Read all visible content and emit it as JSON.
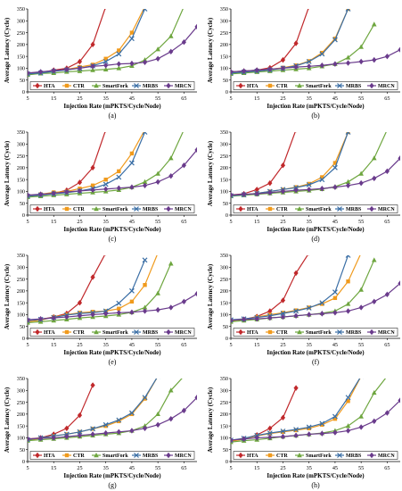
{
  "common": {
    "xlabel": "Injection Rate (mPKTS/Cycle/Node)",
    "ylabel": "Average Latency (Cycle)",
    "xticks": [
      5,
      15,
      25,
      35,
      45,
      55,
      65
    ],
    "yticks": [
      0,
      50,
      100,
      150,
      200,
      250,
      300,
      350
    ],
    "xlim": [
      5,
      70
    ],
    "ylim": [
      0,
      350
    ],
    "grid": false,
    "legend_position": "bottom-inside",
    "series_styles": [
      {
        "name": "HTA",
        "color": "#c0282b",
        "marker": "diamond"
      },
      {
        "name": "CTR",
        "color": "#f09a1c",
        "marker": "square"
      },
      {
        "name": "SmartFork",
        "color": "#6ea63f",
        "marker": "triangle"
      },
      {
        "name": "MRBS",
        "color": "#3a6ea5",
        "marker": "cross"
      },
      {
        "name": "MRCN",
        "color": "#6a3b8c",
        "marker": "diamond"
      }
    ]
  },
  "chart_data": [
    {
      "type": "line",
      "caption": "(a)",
      "xlabel": "Injection Rate (mPKTS/Cycle/Node)",
      "ylabel": "Average Latency (Cycle)",
      "ylim": [
        0,
        350
      ],
      "x": [
        5,
        10,
        15,
        20,
        25,
        30,
        35,
        40,
        45,
        50,
        55,
        60,
        65,
        70
      ],
      "series": [
        {
          "name": "HTA",
          "values": [
            78,
            82,
            92,
            100,
            128,
            200,
            360,
            null,
            null,
            null,
            null,
            null,
            null,
            null
          ]
        },
        {
          "name": "CTR",
          "values": [
            75,
            80,
            88,
            95,
            105,
            115,
            140,
            175,
            250,
            360,
            null,
            null,
            null,
            null
          ]
        },
        {
          "name": "SmartFork",
          "values": [
            72,
            78,
            80,
            85,
            88,
            92,
            95,
            100,
            110,
            135,
            180,
            235,
            360,
            null
          ]
        },
        {
          "name": "MRBS",
          "values": [
            76,
            80,
            87,
            93,
            100,
            110,
            128,
            160,
            225,
            350,
            null,
            null,
            null,
            null
          ]
        },
        {
          "name": "MRCN",
          "values": [
            80,
            85,
            90,
            95,
            100,
            108,
            112,
            118,
            120,
            125,
            140,
            170,
            210,
            275
          ]
        }
      ]
    },
    {
      "type": "line",
      "caption": "(b)",
      "xlabel": "Injection Rate (mPKTS/Cycle/Node)",
      "ylabel": "Average Latency (Cycle)",
      "ylim": [
        0,
        350
      ],
      "x": [
        5,
        10,
        15,
        20,
        25,
        30,
        35,
        40,
        45,
        50,
        55,
        60,
        65,
        70
      ],
      "series": [
        {
          "name": "HTA",
          "values": [
            85,
            88,
            92,
            102,
            135,
            205,
            360,
            null,
            null,
            null,
            null,
            null,
            null,
            null
          ]
        },
        {
          "name": "CTR",
          "values": [
            80,
            84,
            88,
            95,
            102,
            112,
            130,
            165,
            225,
            350,
            null,
            null,
            null,
            null
          ]
        },
        {
          "name": "SmartFork",
          "values": [
            76,
            80,
            84,
            88,
            92,
            96,
            100,
            108,
            118,
            145,
            190,
            285,
            null,
            null
          ]
        },
        {
          "name": "MRBS",
          "values": [
            80,
            84,
            88,
            93,
            100,
            110,
            128,
            160,
            220,
            350,
            null,
            null,
            null,
            null
          ]
        },
        {
          "name": "MRCN",
          "values": [
            85,
            88,
            92,
            96,
            100,
            105,
            108,
            112,
            118,
            122,
            128,
            135,
            150,
            178
          ]
        }
      ]
    },
    {
      "type": "line",
      "caption": "(c)",
      "xlabel": "Injection Rate (mPKTS/Cycle/Node)",
      "ylabel": "Average Latency (Cycle)",
      "ylim": [
        0,
        350
      ],
      "x": [
        5,
        10,
        15,
        20,
        25,
        30,
        35,
        40,
        45,
        50,
        55,
        60,
        65,
        70
      ],
      "series": [
        {
          "name": "HTA",
          "values": [
            80,
            85,
            92,
            105,
            138,
            200,
            360,
            null,
            null,
            null,
            null,
            null,
            null,
            null
          ]
        },
        {
          "name": "CTR",
          "values": [
            80,
            88,
            96,
            100,
            112,
            125,
            150,
            185,
            260,
            360,
            null,
            null,
            null,
            null
          ]
        },
        {
          "name": "SmartFork",
          "values": [
            76,
            80,
            84,
            88,
            92,
            96,
            100,
            106,
            118,
            140,
            175,
            240,
            360,
            null
          ]
        },
        {
          "name": "MRBS",
          "values": [
            80,
            85,
            90,
            95,
            102,
            112,
            130,
            160,
            220,
            350,
            null,
            null,
            null,
            null
          ]
        },
        {
          "name": "MRCN",
          "values": [
            85,
            88,
            92,
            98,
            102,
            106,
            110,
            114,
            118,
            125,
            140,
            165,
            210,
            275
          ]
        }
      ]
    },
    {
      "type": "line",
      "caption": "(d)",
      "xlabel": "Injection Rate (mPKTS/Cycle/Node)",
      "ylabel": "Average Latency (Cycle)",
      "ylim": [
        0,
        350
      ],
      "x": [
        5,
        10,
        15,
        20,
        25,
        30,
        35,
        40,
        45,
        50,
        55,
        60,
        65,
        70
      ],
      "series": [
        {
          "name": "HTA",
          "values": [
            85,
            90,
            108,
            135,
            210,
            360,
            null,
            null,
            null,
            null,
            null,
            null,
            null,
            null
          ]
        },
        {
          "name": "CTR",
          "values": [
            82,
            86,
            92,
            100,
            108,
            118,
            132,
            160,
            220,
            350,
            null,
            null,
            null,
            null
          ]
        },
        {
          "name": "SmartFork",
          "values": [
            80,
            84,
            88,
            92,
            96,
            100,
            104,
            110,
            120,
            140,
            175,
            240,
            360,
            null
          ]
        },
        {
          "name": "MRBS",
          "values": [
            82,
            86,
            92,
            100,
            108,
            116,
            128,
            150,
            200,
            350,
            null,
            null,
            null,
            null
          ]
        },
        {
          "name": "MRCN",
          "values": [
            85,
            88,
            90,
            95,
            100,
            105,
            108,
            112,
            118,
            125,
            135,
            155,
            185,
            240
          ]
        }
      ]
    },
    {
      "type": "line",
      "caption": "(e)",
      "xlabel": "Injection Rate (mPKTS/Cycle/Node)",
      "ylabel": "Average Latency (Cycle)",
      "ylim": [
        0,
        350
      ],
      "x": [
        5,
        10,
        15,
        20,
        25,
        30,
        35,
        40,
        45,
        50,
        55,
        60,
        65,
        70
      ],
      "series": [
        {
          "name": "HTA",
          "values": [
            76,
            80,
            90,
            105,
            150,
            258,
            360,
            null,
            null,
            null,
            null,
            null,
            null,
            null
          ]
        },
        {
          "name": "CTR",
          "values": [
            70,
            76,
            90,
            100,
            108,
            112,
            115,
            125,
            155,
            225,
            360,
            null,
            null,
            null
          ]
        },
        {
          "name": "SmartFork",
          "values": [
            66,
            70,
            75,
            80,
            86,
            90,
            94,
            100,
            110,
            130,
            190,
            315,
            null,
            null
          ]
        },
        {
          "name": "MRBS",
          "values": [
            75,
            80,
            88,
            98,
            105,
            108,
            115,
            148,
            200,
            330,
            null,
            null,
            null,
            null
          ]
        },
        {
          "name": "MRCN",
          "values": [
            78,
            82,
            86,
            90,
            95,
            100,
            104,
            108,
            110,
            115,
            120,
            130,
            155,
            188
          ]
        }
      ]
    },
    {
      "type": "line",
      "caption": "(f)",
      "xlabel": "Injection Rate (mPKTS/Cycle/Node)",
      "ylabel": "Average Latency (Cycle)",
      "ylim": [
        0,
        350
      ],
      "x": [
        5,
        10,
        15,
        20,
        25,
        30,
        35,
        40,
        45,
        50,
        55,
        60,
        65,
        70
      ],
      "series": [
        {
          "name": "HTA",
          "values": [
            76,
            80,
            92,
            115,
            160,
            275,
            360,
            null,
            null,
            null,
            null,
            null,
            null,
            null
          ]
        },
        {
          "name": "CTR",
          "values": [
            74,
            80,
            90,
            100,
            108,
            118,
            130,
            145,
            170,
            240,
            360,
            null,
            null,
            null
          ]
        },
        {
          "name": "SmartFork",
          "values": [
            70,
            75,
            80,
            86,
            90,
            95,
            100,
            106,
            115,
            145,
            205,
            330,
            null,
            null
          ]
        },
        {
          "name": "MRBS",
          "values": [
            78,
            82,
            88,
            95,
            105,
            115,
            128,
            150,
            195,
            350,
            null,
            null,
            null,
            null
          ]
        },
        {
          "name": "MRCN",
          "values": [
            76,
            80,
            82,
            86,
            90,
            95,
            100,
            104,
            108,
            115,
            130,
            155,
            185,
            232
          ]
        }
      ]
    },
    {
      "type": "line",
      "caption": "(g)",
      "xlabel": "Injection Rate (mPKTS/Cycle/Node)",
      "ylabel": "Average Latency (Cycle)",
      "ylim": [
        0,
        350
      ],
      "x": [
        5,
        10,
        15,
        20,
        25,
        30,
        35,
        40,
        45,
        50,
        55,
        60,
        65,
        70
      ],
      "series": [
        {
          "name": "HTA",
          "values": [
            95,
            100,
            115,
            140,
            195,
            322,
            null,
            null,
            null,
            null,
            null,
            null,
            null,
            null
          ]
        },
        {
          "name": "CTR",
          "values": [
            90,
            98,
            108,
            115,
            125,
            138,
            150,
            170,
            200,
            265,
            360,
            null,
            null,
            null
          ]
        },
        {
          "name": "SmartFork",
          "values": [
            88,
            92,
            96,
            100,
            105,
            110,
            115,
            120,
            130,
            150,
            200,
            300,
            360,
            null
          ]
        },
        {
          "name": "MRBS",
          "values": [
            92,
            100,
            108,
            115,
            125,
            138,
            155,
            175,
            205,
            270,
            360,
            null,
            null,
            null
          ]
        },
        {
          "name": "MRCN",
          "values": [
            95,
            98,
            100,
            105,
            110,
            115,
            120,
            125,
            130,
            140,
            155,
            180,
            215,
            270
          ]
        }
      ]
    },
    {
      "type": "line",
      "caption": "(h)",
      "xlabel": "Injection Rate (mPKTS/Cycle/Node)",
      "ylabel": "Average Latency (Cycle)",
      "ylim": [
        0,
        350
      ],
      "x": [
        5,
        10,
        15,
        20,
        25,
        30,
        35,
        40,
        45,
        50,
        55,
        60,
        65,
        70
      ],
      "series": [
        {
          "name": "HTA",
          "values": [
            88,
            95,
            112,
            140,
            185,
            310,
            null,
            null,
            null,
            null,
            null,
            null,
            null,
            null
          ]
        },
        {
          "name": "CTR",
          "values": [
            85,
            95,
            108,
            118,
            125,
            132,
            140,
            155,
            180,
            255,
            360,
            null,
            null,
            null
          ]
        },
        {
          "name": "SmartFork",
          "values": [
            82,
            88,
            92,
            98,
            105,
            110,
            115,
            120,
            130,
            150,
            190,
            290,
            360,
            null
          ]
        },
        {
          "name": "MRBS",
          "values": [
            90,
            98,
            110,
            120,
            128,
            135,
            145,
            160,
            190,
            270,
            360,
            null,
            null,
            null
          ]
        },
        {
          "name": "MRCN",
          "values": [
            90,
            95,
            100,
            102,
            105,
            110,
            115,
            118,
            122,
            130,
            145,
            170,
            205,
            258
          ]
        }
      ]
    }
  ]
}
